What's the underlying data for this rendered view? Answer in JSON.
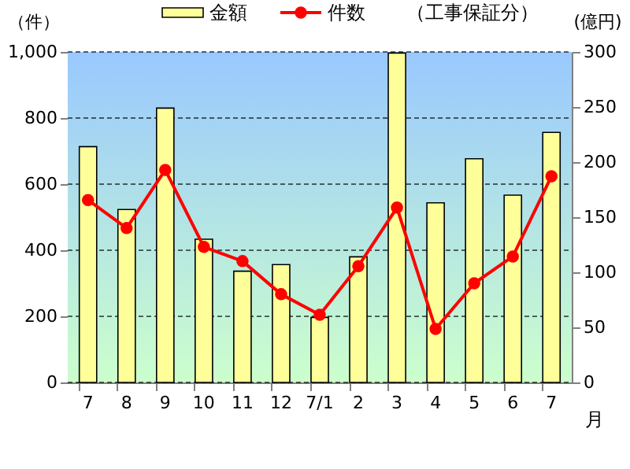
{
  "chart_data": {
    "type": "bar",
    "categories": [
      "7",
      "8",
      "9",
      "10",
      "11",
      "12",
      "7/1",
      "2",
      "3",
      "4",
      "5",
      "6",
      "7"
    ],
    "xlabel": "月",
    "ylabel": "（件）",
    "y2label": "(億円)",
    "legend_title": "（工事保証分）",
    "legend": "top",
    "grid": "y",
    "ylim": [
      0,
      1000
    ],
    "yticks": [
      0,
      200,
      400,
      600,
      800,
      {
        "value": 1000,
        "label": "1,000"
      }
    ],
    "y2lim": [
      0,
      300
    ],
    "y2ticks": [
      0,
      50,
      100,
      150,
      200,
      250,
      300
    ],
    "series": [
      {
        "name": "金額",
        "axis": "y2",
        "color": "#ffff99",
        "values": [
          214,
          157,
          249,
          130,
          101,
          107,
          59,
          114,
          299,
          163,
          203,
          170,
          227
        ]
      },
      {
        "name": "件数",
        "type": "line",
        "axis": "y",
        "color": "#ff0000",
        "marker": "circle",
        "values": [
          552,
          467,
          643,
          410,
          367,
          267,
          205,
          352,
          529,
          162,
          300,
          381,
          624
        ]
      }
    ]
  }
}
